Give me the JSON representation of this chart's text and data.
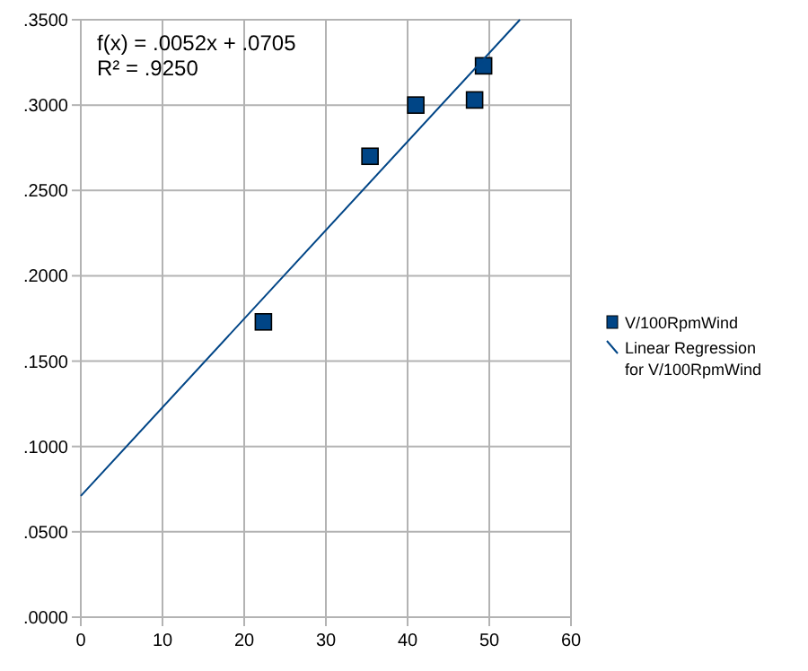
{
  "chart_data": {
    "type": "scatter",
    "annotations": [
      "f(x) = .0052x + .0705",
      "R² = .9250"
    ],
    "series": [
      {
        "name": "V/100RpmWind",
        "color": "#004586",
        "marker": "square",
        "x": [
          22.35,
          35.4,
          41.0,
          48.2,
          49.3
        ],
        "values": [
          0.173,
          0.27,
          0.3,
          0.303,
          0.323
        ]
      },
      {
        "name": "Linear Regression for V/100RpmWind",
        "type": "line",
        "color": "#004586",
        "x": [
          0,
          53.75
        ],
        "values": [
          0.071,
          0.35
        ]
      }
    ],
    "xlim": [
      0,
      60
    ],
    "xticks": [
      0,
      10,
      20,
      30,
      40,
      50,
      60
    ],
    "ylim": [
      0,
      0.35
    ],
    "yticks": [
      {
        "value": 0,
        "label": ".0000"
      },
      {
        "value": 0.05,
        "label": ".0500"
      },
      {
        "value": 0.1,
        "label": ".1000"
      },
      {
        "value": 0.15,
        "label": ".1500"
      },
      {
        "value": 0.2,
        "label": ".2000"
      },
      {
        "value": 0.25,
        "label": ".2500"
      },
      {
        "value": 0.3,
        "label": ".3000"
      },
      {
        "value": 0.35,
        "label": ".3500"
      }
    ],
    "grid": true,
    "legend": "right"
  }
}
